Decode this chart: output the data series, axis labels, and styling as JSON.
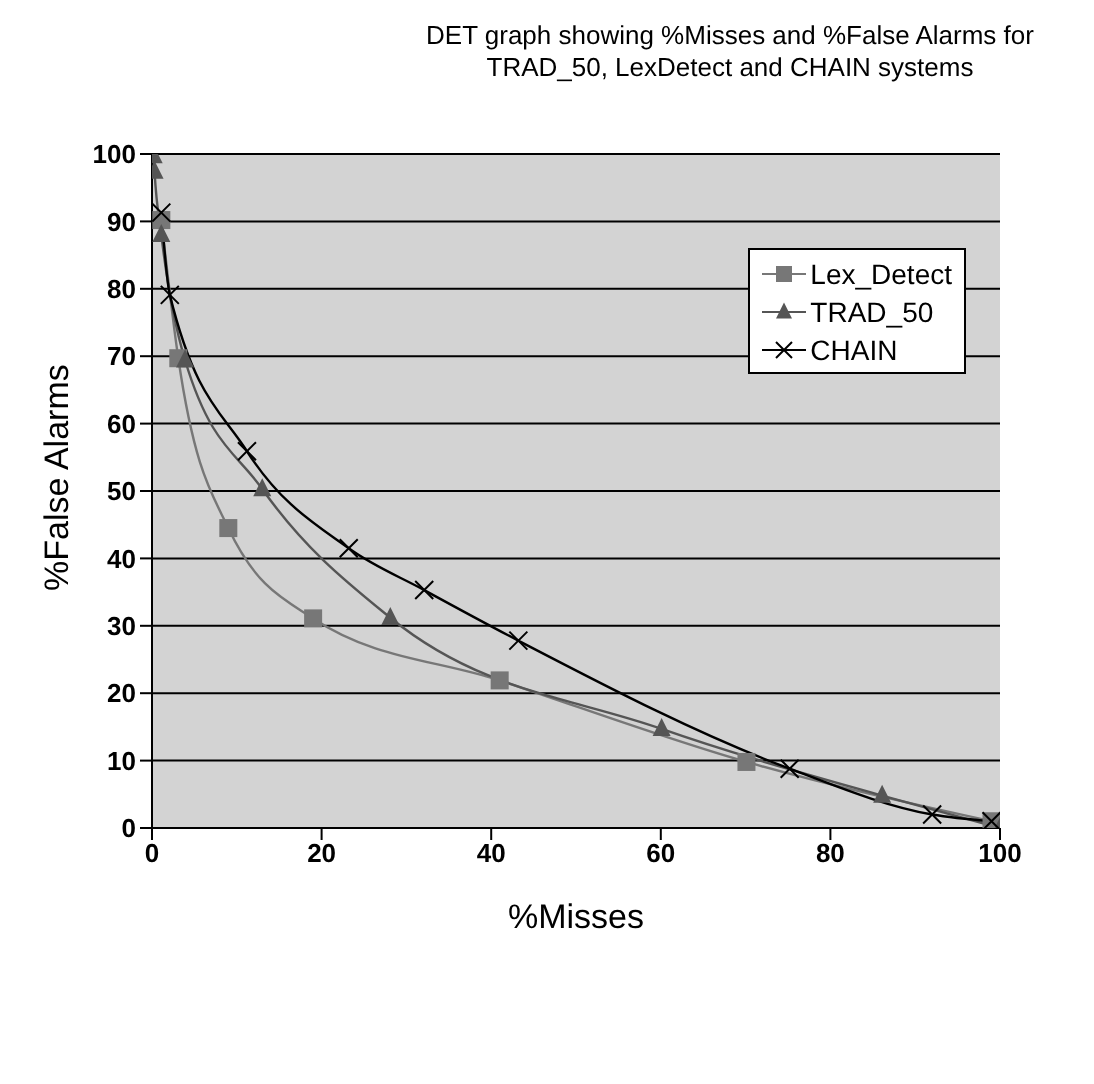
{
  "chart_data": {
    "type": "line",
    "title": "DET graph showing %Misses and %False Alarms for TRAD_50, LexDetect and CHAIN systems",
    "xlabel": "%Misses",
    "ylabel": "%False Alarms",
    "xlim": [
      0,
      100
    ],
    "xticks": [
      0,
      20,
      40,
      60,
      80,
      100
    ],
    "ylim": [
      0,
      100
    ],
    "yticks": [
      0,
      10,
      20,
      30,
      40,
      50,
      60,
      70,
      80,
      90,
      100
    ],
    "grid": "y",
    "legend": "top right",
    "series": [
      {
        "name": "Lex_Detect",
        "color": "#777777",
        "marker": "square",
        "x": [
          1.1,
          3.1,
          9,
          19,
          41,
          70.1,
          99
        ],
        "values": [
          90.2,
          69.7,
          44.5,
          31.1,
          21.9,
          9.8,
          1
        ]
      },
      {
        "name": "TRAD_50",
        "color": "#555555",
        "marker": "triangle",
        "x": [
          0.2,
          0.3,
          1.1,
          3.9,
          13,
          28.1,
          60.1,
          86.1,
          100
        ],
        "values": [
          99.7,
          97.4,
          88,
          69.4,
          50.3,
          31.2,
          14.7,
          4.8,
          0
        ]
      },
      {
        "name": "CHAIN",
        "color": "#000000",
        "marker": "cross",
        "x": [
          1.1,
          2.1,
          11.2,
          23.2,
          32.1,
          43.2,
          75.2,
          92,
          99
        ],
        "values": [
          91.3,
          79.1,
          55.9,
          41.5,
          35.3,
          27.8,
          8.8,
          2,
          1
        ]
      }
    ]
  }
}
